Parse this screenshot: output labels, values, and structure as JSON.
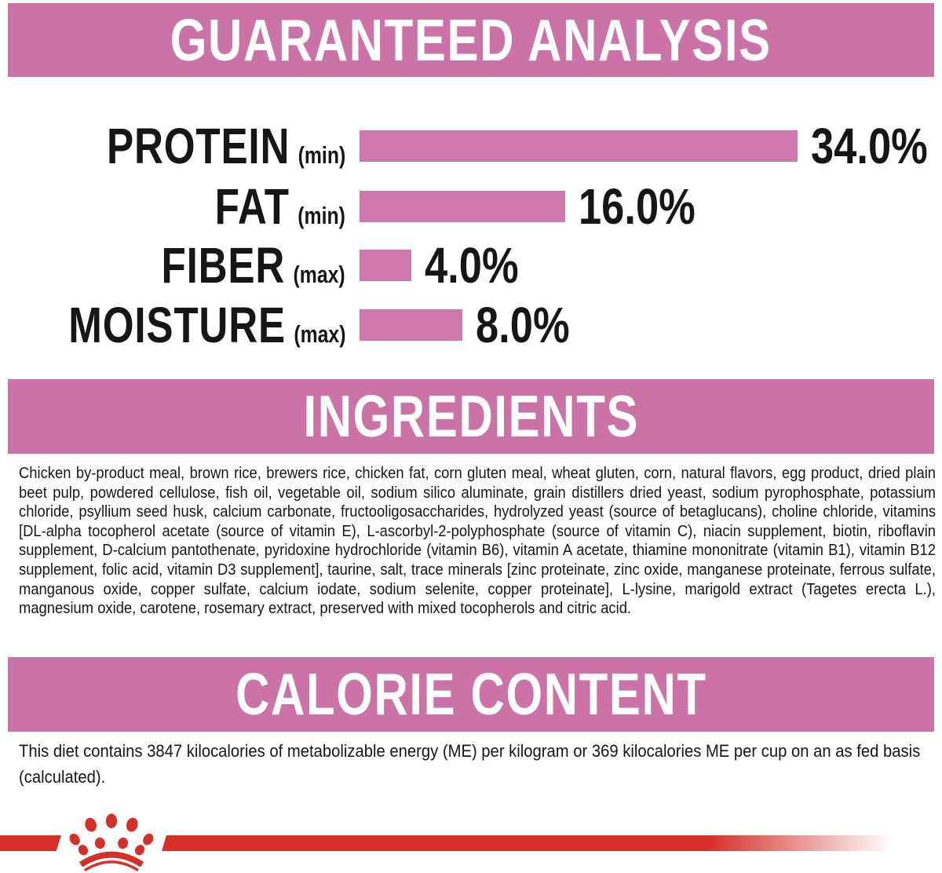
{
  "colors": {
    "banner_pink": "#cb73a6",
    "bar_pink": "#cf78ab",
    "brand_red": "#d52f27",
    "text_black": "#161616",
    "banner_text": "#ffffff"
  },
  "sections": {
    "guaranteed_analysis": {
      "title": "GUARANTEED ANALYSIS"
    },
    "ingredients": {
      "title": "INGREDIENTS",
      "text": "Chicken by-product meal, brown rice, brewers rice, chicken fat, corn gluten meal, wheat gluten, corn, natural flavors, egg product, dried plain beet pulp, powdered cellulose, fish oil, vegetable oil, sodium silico aluminate, grain distillers dried yeast, sodium pyrophosphate, potassium chloride, psyllium seed husk, calcium carbonate, fructooligosaccharides, hydrolyzed yeast (source of betaglucans), choline chloride, vitamins [DL-alpha tocopherol acetate (source of vitamin E), L-ascorbyl-2-polyphosphate (source of vitamin C), niacin supplement, biotin, riboflavin supplement, D-calcium pantothenate, pyridoxine hydrochloride (vitamin B6), vitamin A acetate, thiamine mononitrate (vitamin B1), vitamin B12 supplement, folic acid, vitamin D3 supplement], taurine, salt, trace minerals [zinc proteinate, zinc oxide, manganese proteinate, ferrous sulfate, manganous oxide, copper sulfate, calcium iodate, sodium selenite, copper proteinate], L-lysine, marigold extract (Tagetes erecta L.), magnesium oxide, carotene, rosemary extract, preserved with mixed tocopherols and citric acid."
    },
    "calorie_content": {
      "title": "CALORIE CONTENT",
      "text": "This diet contains 3847 kilocalories of metabolizable energy (ME) per kilogram or 369 kilocalories ME per cup on an as fed basis (calculated)."
    }
  },
  "chart_data": {
    "type": "bar",
    "orientation": "horizontal",
    "title": "GUARANTEED ANALYSIS",
    "categories": [
      "PROTEIN",
      "FAT",
      "FIBER",
      "MOISTURE"
    ],
    "qualifiers": [
      "(min)",
      "(min)",
      "(max)",
      "(max)"
    ],
    "values": [
      34.0,
      16.0,
      4.0,
      8.0
    ],
    "value_labels": [
      "34.0%",
      "16.0%",
      "4.0%",
      "8.0%"
    ],
    "unit": "percent",
    "xlim": [
      0,
      40
    ],
    "bar_color": "#cf78ab",
    "grid": false,
    "legend": false
  },
  "footer": {
    "logo_icon": "royal-canin-crown-icon"
  }
}
